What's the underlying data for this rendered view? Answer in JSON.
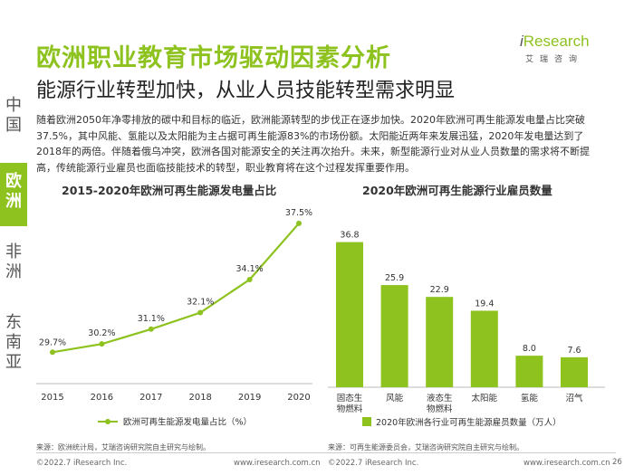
{
  "header": {
    "title": "欧洲职业教育市场驱动因素分析",
    "subtitle": "能源行业转型加快，从业人员技能转型需求明显"
  },
  "logo": {
    "brand_prefix": "i",
    "brand_main": "Research",
    "sub": "艾瑞咨询"
  },
  "nav": [
    {
      "label": "中国",
      "active": false
    },
    {
      "label": "欧洲",
      "active": true
    },
    {
      "label": "非洲",
      "active": false
    },
    {
      "label": "东南亚",
      "active": false
    }
  ],
  "intro": "随着欧洲2050年净零排放的碳中和目标的临近，欧洲能源转型的步伐正在逐步加快。2020年欧洲可再生能源发电量占比突破37.5%，其中风能、氢能以及太阳能为主占据可再生能源83%的市场份额。太阳能近两年来发展迅猛，2020年发电量达到了2018年的两倍。伴随着俄乌冲突，欧洲各国对能源安全的关注再次抬升。未来，新型能源行业对从业人员数量的需求将不断提高，传统能源行业雇员也面临技能技术的转型，职业教育将在这个过程发挥重要作用。",
  "colors": {
    "accent": "#8dc21f",
    "bar": "#8dc21f",
    "line": "#8dc21f"
  },
  "chart_data": [
    {
      "type": "line",
      "title": "2015-2020年欧洲可再生能源发电量占比",
      "x": [
        "2015",
        "2016",
        "2017",
        "2018",
        "2019",
        "2020"
      ],
      "series": [
        {
          "name": "欧洲可再生能源发电量占比（%）",
          "values": [
            29.7,
            30.2,
            31.1,
            32.1,
            34.1,
            37.5
          ]
        }
      ],
      "data_labels": [
        "29.7%",
        "30.2%",
        "31.1%",
        "32.1%",
        "34.1%",
        "37.5%"
      ],
      "ylim": [
        27.8,
        38.7
      ],
      "xlabel": "",
      "ylabel": "",
      "legend": "bottom",
      "source": "来源：欧洲统计局，艾瑞咨询研究院自主研究与绘制。"
    },
    {
      "type": "bar",
      "title": "2020年欧洲可再生能源行业雇员数量",
      "categories": [
        "固态生物燃料",
        "风能",
        "液态生物燃料",
        "太阳能",
        "氢能",
        "沼气"
      ],
      "series": [
        {
          "name": "2020年欧洲各行业可再生能源雇员数量（万人）",
          "values": [
            36.8,
            25.9,
            22.9,
            19.4,
            8.0,
            7.6
          ]
        }
      ],
      "data_labels": [
        "36.8",
        "25.9",
        "22.9",
        "19.4",
        "8.0",
        "7.6"
      ],
      "ylim": [
        0,
        39
      ],
      "xlabel": "",
      "ylabel": "",
      "legend": "bottom",
      "source": "来源：可再生能源委员会，艾瑞咨询研究院自主研究与绘制。"
    }
  ],
  "footer": {
    "copyright": "©2022.7 iResearch Inc.",
    "url": "www.iresearch.com.cn",
    "page": "26"
  }
}
